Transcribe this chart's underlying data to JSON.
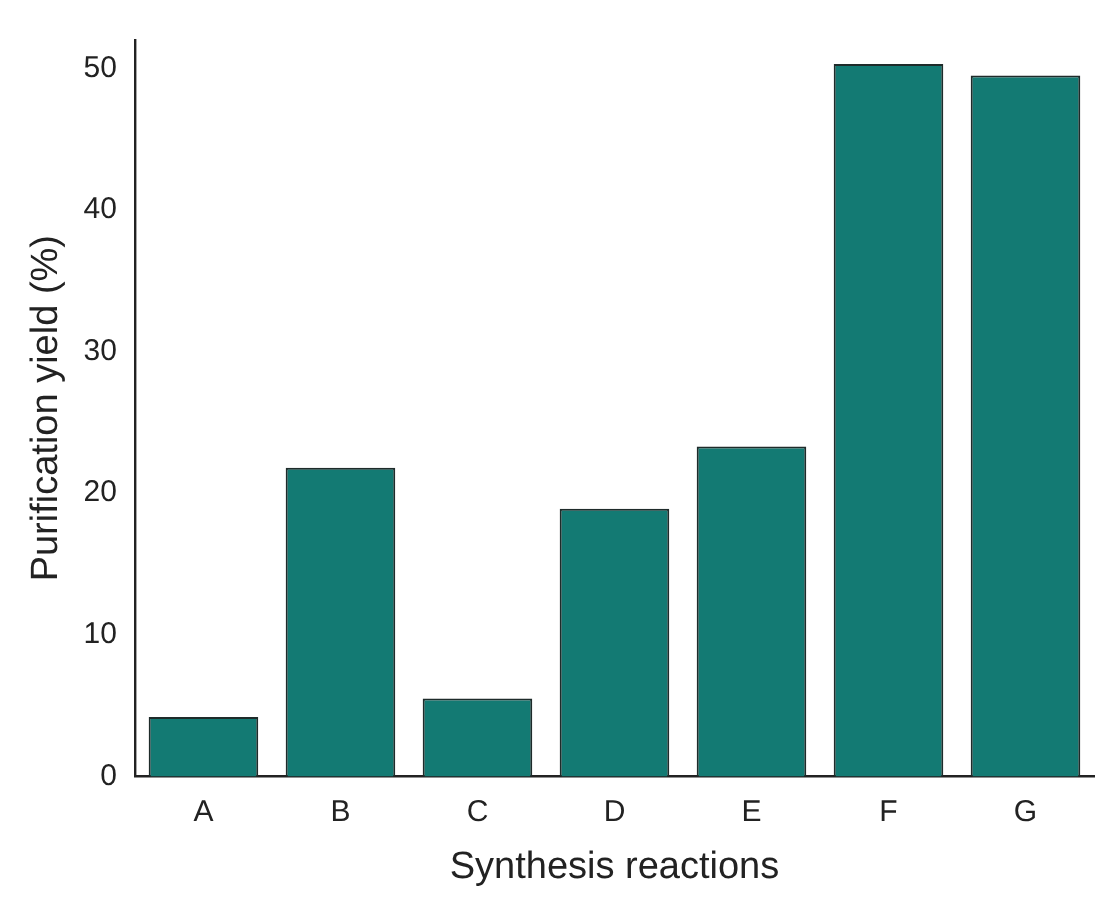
{
  "chart_data": {
    "type": "bar",
    "xlabel": "Synthesis reactions",
    "ylabel": "Purification yield (%)",
    "categories": [
      "A",
      "B",
      "C",
      "D",
      "E",
      "F",
      "G"
    ],
    "values": [
      4.2,
      21.8,
      5.5,
      18.9,
      23.3,
      50.3,
      49.5
    ],
    "color": "#137a73",
    "ylim": [
      0,
      52
    ],
    "yticks": [
      0,
      10,
      20,
      30,
      40,
      50
    ],
    "grid": false,
    "legend": false
  }
}
